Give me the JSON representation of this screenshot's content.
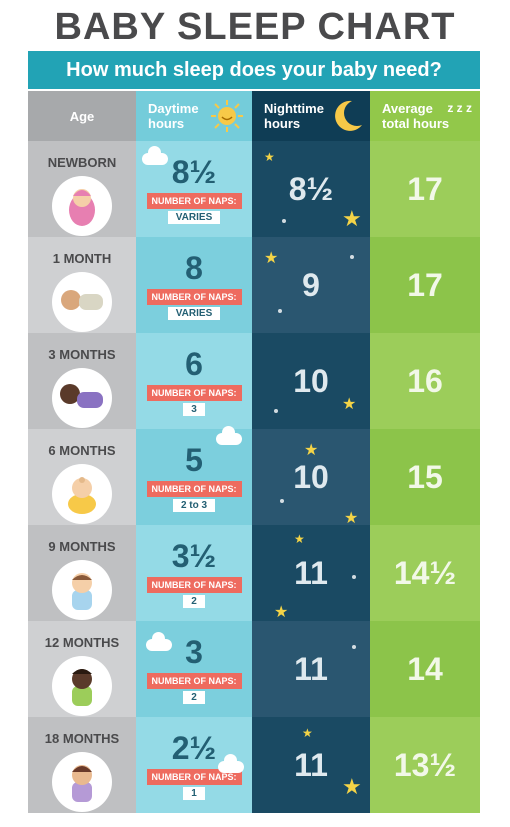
{
  "title": "BABY SLEEP CHART",
  "subtitle": "How much sleep does your baby need?",
  "headers": {
    "age": "Age",
    "daytime_line1": "Daytime",
    "daytime_line2": "hours",
    "nighttime_line1": "Nighttime",
    "nighttime_line2": "hours",
    "average_line1": "Average",
    "average_line2": "total hours",
    "zzz": "z z z"
  },
  "naps_label": "NUMBER OF NAPS:",
  "rows": [
    {
      "age": "NEWBORN",
      "daytime": "8½",
      "naps": "VARIES",
      "nighttime": "8½",
      "total": "17"
    },
    {
      "age": "1 MONTH",
      "daytime": "8",
      "naps": "VARIES",
      "nighttime": "9",
      "total": "17"
    },
    {
      "age": "3 MONTHS",
      "daytime": "6",
      "naps": "3",
      "nighttime": "10",
      "total": "16"
    },
    {
      "age": "6 MONTHS",
      "daytime": "5",
      "naps": "2 to 3",
      "nighttime": "10",
      "total": "15"
    },
    {
      "age": "9 MONTHS",
      "daytime": "3½",
      "naps": "2",
      "nighttime": "11",
      "total": "14½"
    },
    {
      "age": "12 MONTHS",
      "daytime": "3",
      "naps": "2",
      "nighttime": "11",
      "total": "14"
    },
    {
      "age": "18 MONTHS",
      "daytime": "2½",
      "naps": "1",
      "nighttime": "11",
      "total": "13½"
    }
  ],
  "colors": {
    "title": "#4a4a4c",
    "banner": "#22a3b5",
    "age_col": "#bfc0c2",
    "day_col": "#94dae6",
    "night_col": "#1a4a63",
    "total_col": "#9ccd5a",
    "naps_badge": "#ee6b5f",
    "star": "#f4d447"
  }
}
